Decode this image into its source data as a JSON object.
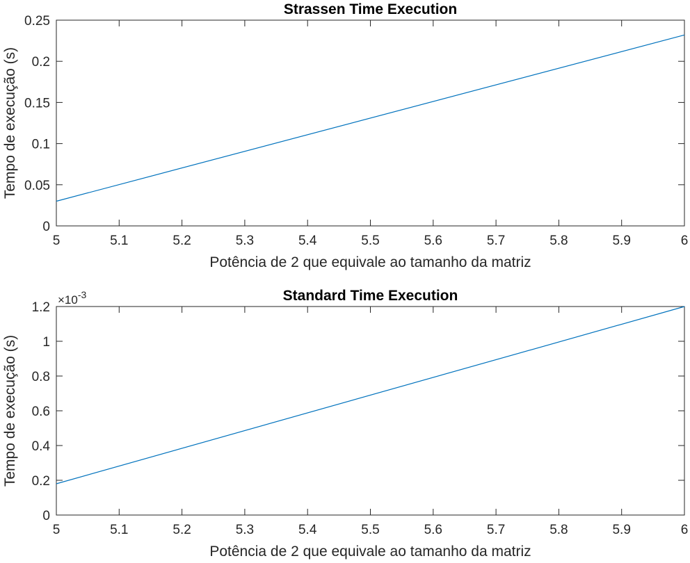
{
  "chart_data": [
    {
      "type": "line",
      "title": "Strassen Time Execution",
      "xlabel": "Potência de 2 que equivale ao tamanho da matriz",
      "ylabel": "Tempo de execução (s)",
      "xlim": [
        5,
        6
      ],
      "ylim": [
        0,
        0.25
      ],
      "x_ticks": [
        "5",
        "5.1",
        "5.2",
        "5.3",
        "5.4",
        "5.5",
        "5.6",
        "5.7",
        "5.8",
        "5.9",
        "6"
      ],
      "y_ticks": [
        "0",
        "0.05",
        "0.1",
        "0.15",
        "0.2",
        "0.25"
      ],
      "y_exponent": "",
      "grid": false,
      "color": "#0072BD",
      "series": [
        {
          "x": [
            5,
            6
          ],
          "y": [
            0.03,
            0.232
          ]
        }
      ]
    },
    {
      "type": "line",
      "title": "Standard Time Execution",
      "xlabel": "Potência de 2 que equivale ao tamanho da matriz",
      "ylabel": "Tempo de execução (s)",
      "xlim": [
        5,
        6
      ],
      "ylim": [
        0,
        0.0012
      ],
      "x_ticks": [
        "5",
        "5.1",
        "5.2",
        "5.3",
        "5.4",
        "5.5",
        "5.6",
        "5.7",
        "5.8",
        "5.9",
        "6"
      ],
      "y_ticks": [
        "0",
        "0.2",
        "0.4",
        "0.6",
        "0.8",
        "1",
        "1.2"
      ],
      "y_exponent": "-3",
      "y_exponent_base": "×10",
      "grid": false,
      "color": "#0072BD",
      "series": [
        {
          "x": [
            5,
            6
          ],
          "y": [
            0.00018,
            0.0012
          ]
        }
      ]
    }
  ]
}
